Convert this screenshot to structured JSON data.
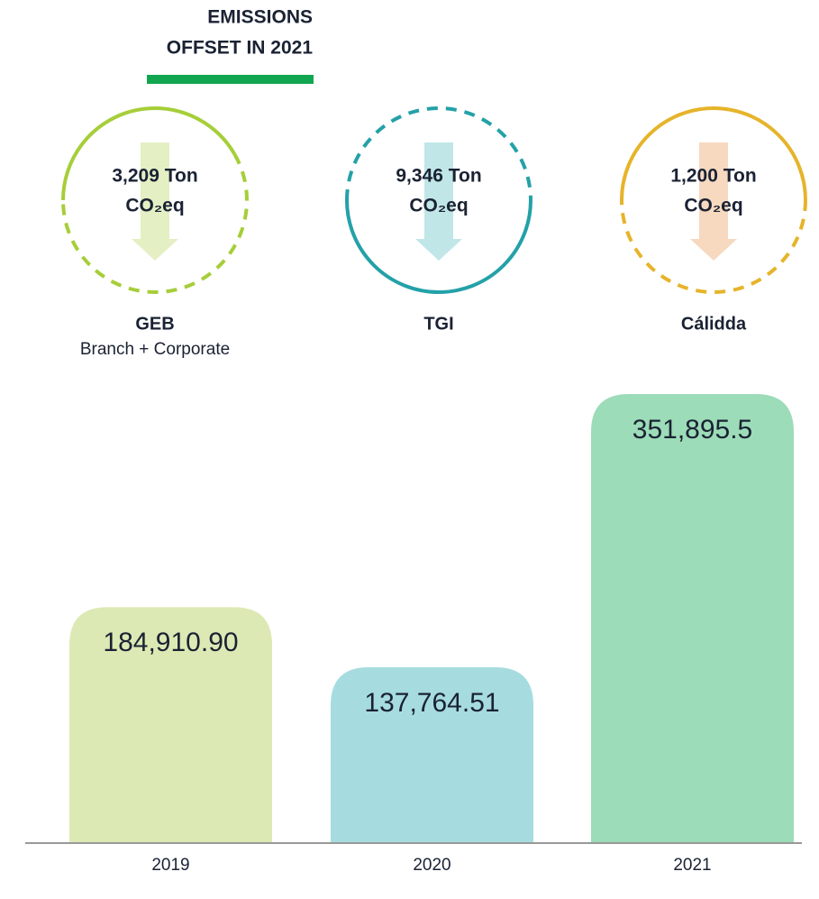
{
  "header": {
    "title_lines": [
      "EMISSIONS",
      "OFFSET IN 2021"
    ],
    "accent_color": "#12a650"
  },
  "offsets": [
    {
      "amount": "3,209 Ton",
      "unit": "CO₂eq",
      "name": "GEB",
      "subtitle": "Branch + Corporate",
      "color": "#a6ce39",
      "arrow_color": "#e4efc4",
      "solid": "top-left"
    },
    {
      "amount": "9,346 Ton",
      "unit": "CO₂eq",
      "name": "TGI",
      "color": "#24a1a8",
      "arrow_color": "#c0e6e8",
      "solid": "bottom"
    },
    {
      "amount": "1,200 Ton",
      "unit": "CO₂eq",
      "name": "Cálidda",
      "color": "#e6b42a",
      "arrow_color": "#f7d9c0",
      "solid": "top"
    }
  ],
  "chart_data": {
    "type": "bar",
    "categories": [
      "2019",
      "2020",
      "2021"
    ],
    "values": [
      184910.9,
      137764.51,
      351895.5
    ],
    "value_labels": [
      "184,910.90",
      "137,764.51",
      "351,895.5"
    ],
    "colors": [
      "#dde9b4",
      "#a6dcdf",
      "#9cdcb8"
    ]
  }
}
